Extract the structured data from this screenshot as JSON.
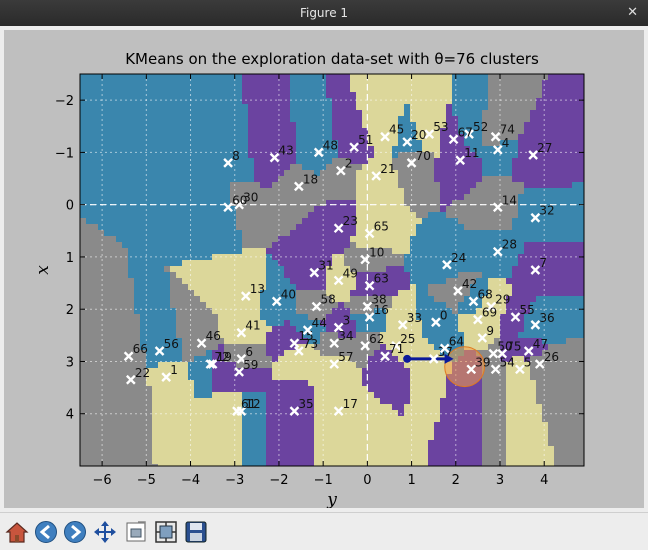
{
  "window": {
    "title": "Figure 1",
    "close_glyph": "✕"
  },
  "chart_data": {
    "type": "scatter",
    "title": "KMeans on the exploration data-set with θ=76 clusters",
    "xlabel": "y",
    "ylabel": "x",
    "xlim": [
      -6.5,
      4.9
    ],
    "ylim": [
      5.0,
      -2.5
    ],
    "y_inverted": true,
    "grid": true,
    "xticks": [
      -6,
      -5,
      -4,
      -3,
      -2,
      -1,
      0,
      1,
      2,
      3,
      4
    ],
    "yticks": [
      -2,
      -1,
      0,
      1,
      2,
      3,
      4
    ],
    "centroid_marker": "x",
    "centroids": [
      {
        "label": "0",
        "x": 1.55,
        "y": 2.25
      },
      {
        "label": "1",
        "x": -4.55,
        "y": 3.3
      },
      {
        "label": "2",
        "x": -0.6,
        "y": -0.65
      },
      {
        "label": "3",
        "x": -0.65,
        "y": 2.35
      },
      {
        "label": "4",
        "x": 2.95,
        "y": -1.05
      },
      {
        "label": "5",
        "x": 3.45,
        "y": 3.15
      },
      {
        "label": "6",
        "x": -2.85,
        "y": 2.95
      },
      {
        "label": "7",
        "x": 3.8,
        "y": 1.25
      },
      {
        "label": "8",
        "x": -3.15,
        "y": -0.8
      },
      {
        "label": "9",
        "x": 2.6,
        "y": 2.55
      },
      {
        "label": "10",
        "x": -0.05,
        "y": 1.05
      },
      {
        "label": "11",
        "x": 2.1,
        "y": -0.85
      },
      {
        "label": "12",
        "x": -2.85,
        "y": 3.95
      },
      {
        "label": "13",
        "x": -2.75,
        "y": 1.75
      },
      {
        "label": "14",
        "x": 2.95,
        "y": 0.05
      },
      {
        "label": "15",
        "x": -1.65,
        "y": 2.65
      },
      {
        "label": "16",
        "x": 0.05,
        "y": 2.15
      },
      {
        "label": "17",
        "x": -0.65,
        "y": 3.95
      },
      {
        "label": "18",
        "x": -1.55,
        "y": -0.35
      },
      {
        "label": "19",
        "x": -3.5,
        "y": 3.05
      },
      {
        "label": "20",
        "x": 0.9,
        "y": -1.2
      },
      {
        "label": "21",
        "x": 0.2,
        "y": -0.55
      },
      {
        "label": "22",
        "x": -5.35,
        "y": 3.35
      },
      {
        "label": "23",
        "x": -0.65,
        "y": 0.45
      },
      {
        "label": "24",
        "x": 1.8,
        "y": 1.15
      },
      {
        "label": "25",
        "x": 0.65,
        "y": 2.7
      },
      {
        "label": "26",
        "x": 3.9,
        "y": 3.05
      },
      {
        "label": "27",
        "x": 3.75,
        "y": -0.95
      },
      {
        "label": "28",
        "x": 2.95,
        "y": 0.9
      },
      {
        "label": "29",
        "x": 2.8,
        "y": 1.95
      },
      {
        "label": "30",
        "x": -2.9,
        "y": 0.0
      },
      {
        "label": "31",
        "x": -1.2,
        "y": 1.3
      },
      {
        "label": "32",
        "x": 3.8,
        "y": 0.25
      },
      {
        "label": "33",
        "x": 0.8,
        "y": 2.3
      },
      {
        "label": "34",
        "x": -0.75,
        "y": 2.65
      },
      {
        "label": "35",
        "x": -1.65,
        "y": 3.95
      },
      {
        "label": "36",
        "x": 3.8,
        "y": 2.3
      },
      {
        "label": "37",
        "x": 1.5,
        "y": 2.95
      },
      {
        "label": "38",
        "x": 0.0,
        "y": 1.95
      },
      {
        "label": "39",
        "x": 2.35,
        "y": 3.15
      },
      {
        "label": "40",
        "x": -2.05,
        "y": 1.85
      },
      {
        "label": "41",
        "x": -2.85,
        "y": 2.45
      },
      {
        "label": "42",
        "x": 2.05,
        "y": 1.65
      },
      {
        "label": "43",
        "x": -2.1,
        "y": -0.9
      },
      {
        "label": "44",
        "x": -1.35,
        "y": 2.4
      },
      {
        "label": "45",
        "x": 0.4,
        "y": -1.3
      },
      {
        "label": "46",
        "x": -3.75,
        "y": 2.65
      },
      {
        "label": "47",
        "x": 3.65,
        "y": 2.8
      },
      {
        "label": "48",
        "x": -1.1,
        "y": -1.0
      },
      {
        "label": "49",
        "x": -0.65,
        "y": 1.45
      },
      {
        "label": "50",
        "x": 2.85,
        "y": 2.85
      },
      {
        "label": "51",
        "x": -0.3,
        "y": -1.1
      },
      {
        "label": "52",
        "x": 2.3,
        "y": -1.35
      },
      {
        "label": "53",
        "x": 1.4,
        "y": -1.35
      },
      {
        "label": "54",
        "x": 2.9,
        "y": 3.15
      },
      {
        "label": "55",
        "x": 3.35,
        "y": 2.15
      },
      {
        "label": "56",
        "x": -4.7,
        "y": 2.8
      },
      {
        "label": "57",
        "x": -0.75,
        "y": 3.05
      },
      {
        "label": "58",
        "x": -1.15,
        "y": 1.95
      },
      {
        "label": "59",
        "x": -2.9,
        "y": 3.2
      },
      {
        "label": "60",
        "x": -3.15,
        "y": 0.05
      },
      {
        "label": "61",
        "x": -2.95,
        "y": 3.95
      },
      {
        "label": "62",
        "x": -0.05,
        "y": 2.7
      },
      {
        "label": "63",
        "x": 0.05,
        "y": 1.55
      },
      {
        "label": "64",
        "x": 1.75,
        "y": 2.75
      },
      {
        "label": "65",
        "x": 0.05,
        "y": 0.55
      },
      {
        "label": "66",
        "x": -5.4,
        "y": 2.9
      },
      {
        "label": "67",
        "x": 1.95,
        "y": -1.25
      },
      {
        "label": "68",
        "x": 2.4,
        "y": 1.85
      },
      {
        "label": "69",
        "x": 2.5,
        "y": 2.2
      },
      {
        "label": "70",
        "x": 1.0,
        "y": -0.8
      },
      {
        "label": "71",
        "x": 0.4,
        "y": 2.9
      },
      {
        "label": "72",
        "x": -3.55,
        "y": 3.05
      },
      {
        "label": "73",
        "x": -1.55,
        "y": 2.8
      },
      {
        "label": "74",
        "x": 2.9,
        "y": -1.3
      },
      {
        "label": "75",
        "x": 3.05,
        "y": 2.85
      }
    ],
    "agent": {
      "x": 0.9,
      "y": 2.95
    },
    "arrow_to": {
      "x": 1.95,
      "y": 2.95
    },
    "circle": {
      "x": 2.2,
      "y": 3.1,
      "r": 0.45
    },
    "colors": [
      "#3a86ad",
      "#f39a45",
      "#74c16b",
      "#e2473f",
      "#a07cc1",
      "#c8a27a",
      "#c7c7c7",
      "#dcd79a",
      "#9fd6e5",
      "#ef8f86",
      "#5e9e54",
      "#9a6fc0",
      "#bf7f3a",
      "#f4b6c6",
      "#8a8a8a",
      "#c3c36a",
      "#4ca9b8",
      "#f0e09a",
      "#e57f2e",
      "#6a9a48",
      "#b85b3c",
      "#6b43a0",
      "#f3d36b",
      "#95c0de",
      "#d85a7a",
      "#a3d98a",
      "#b08a5a",
      "#e45d2c"
    ],
    "dashed_axes": true
  },
  "toolbar": {
    "buttons": [
      {
        "name": "home-icon",
        "tooltip": "Home"
      },
      {
        "name": "back-icon",
        "tooltip": "Back"
      },
      {
        "name": "forward-icon",
        "tooltip": "Forward"
      },
      {
        "name": "pan-icon",
        "tooltip": "Pan"
      },
      {
        "name": "zoom-icon",
        "tooltip": "Zoom"
      },
      {
        "name": "subplots-icon",
        "tooltip": "Configure subplots"
      },
      {
        "name": "save-icon",
        "tooltip": "Save"
      }
    ]
  }
}
